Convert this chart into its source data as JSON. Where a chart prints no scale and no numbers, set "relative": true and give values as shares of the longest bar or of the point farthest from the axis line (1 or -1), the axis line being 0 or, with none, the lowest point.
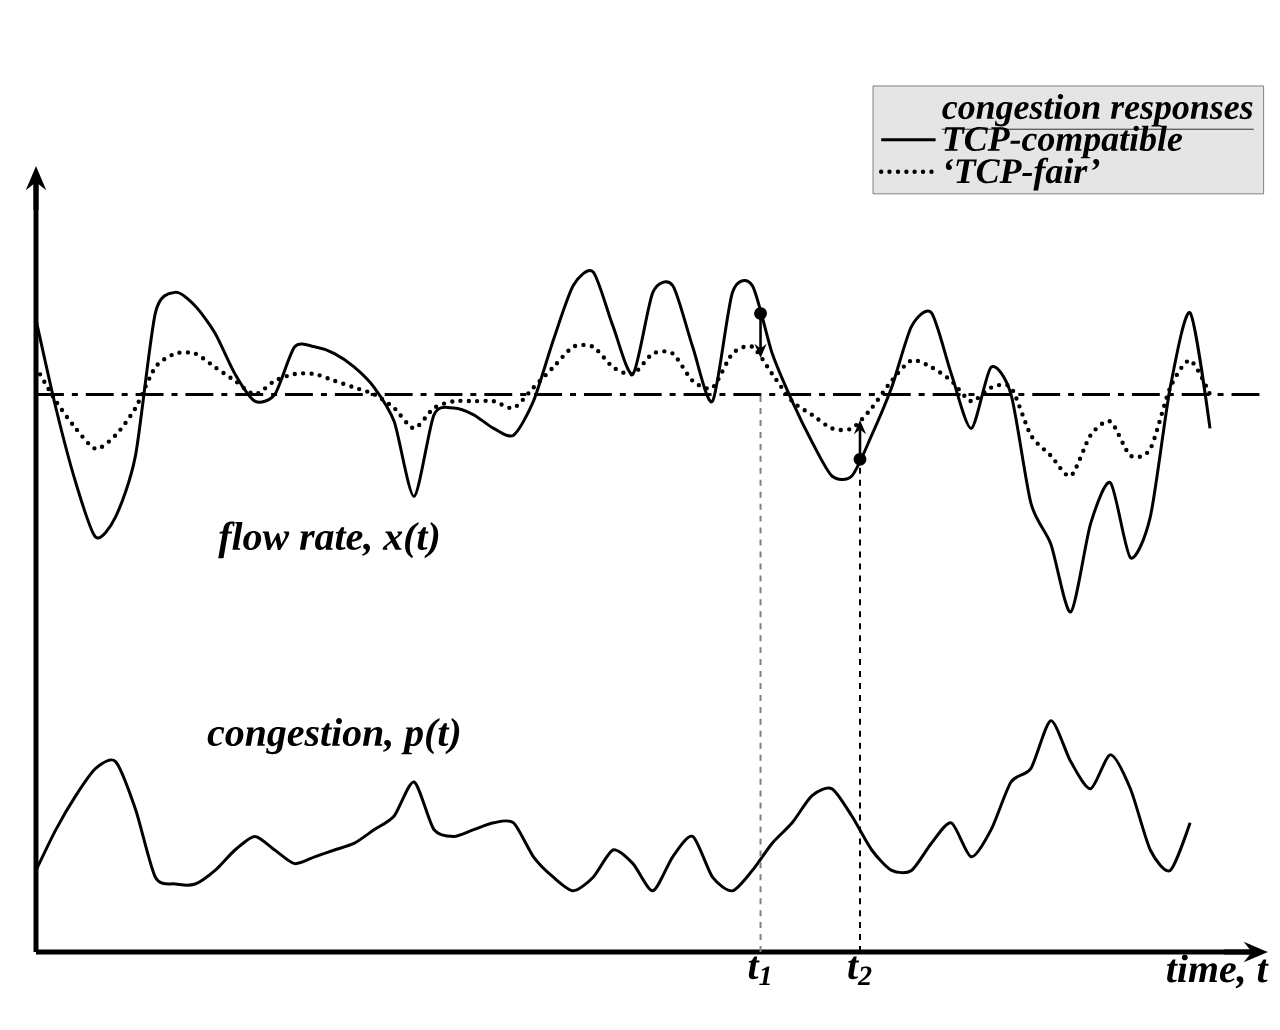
{
  "chart_data": {
    "type": "line",
    "relative": true,
    "xlabel": "time, t",
    "legend_title": "congestion responses",
    "legend": "top right",
    "categories": [
      null,
      null,
      null,
      null,
      null,
      null,
      null,
      null,
      null,
      null,
      null,
      null,
      null,
      null,
      null,
      null,
      null,
      null,
      null,
      null,
      null,
      null,
      null,
      null,
      null,
      null,
      null,
      null,
      null,
      null,
      null,
      null,
      null,
      null,
      null,
      null,
      null,
      null,
      null,
      null,
      null,
      null,
      null,
      null,
      null,
      null,
      null,
      null,
      null,
      null,
      null,
      null,
      null,
      null,
      null,
      null,
      null,
      null,
      null,
      null
    ],
    "series": [
      {
        "name": "TCP-compatible",
        "color": "#000000",
        "line_style": "solid",
        "values": [
          0.93,
          0.8,
          0.69,
          0.61,
          0.64,
          0.73,
          0.94,
          0.97,
          0.95,
          0.91,
          0.85,
          0.81,
          0.82,
          0.89,
          0.89,
          0.88,
          0.86,
          0.83,
          0.78,
          0.67,
          0.79,
          0.8,
          0.79,
          0.77,
          0.76,
          0.81,
          0.9,
          0.98,
          1.0,
          0.92,
          0.85,
          0.97,
          0.98,
          0.89,
          0.81,
          0.97,
          0.98,
          0.88,
          0.81,
          0.75,
          0.7,
          0.7,
          0.76,
          0.83,
          0.92,
          0.94,
          0.85,
          0.77,
          0.86,
          0.82,
          0.66,
          0.6,
          0.5,
          0.63,
          0.69,
          0.58,
          0.64,
          0.83,
          0.94,
          0.77
        ]
      },
      {
        "name": "‘TCP-fair’",
        "color": "#000000",
        "line_style": "dotted",
        "values": [
          0.86,
          0.81,
          0.77,
          0.74,
          0.76,
          0.8,
          0.86,
          0.88,
          0.88,
          0.86,
          0.84,
          0.82,
          0.84,
          0.85,
          0.85,
          0.84,
          0.83,
          0.82,
          0.8,
          0.77,
          0.8,
          0.81,
          0.81,
          0.81,
          0.8,
          0.83,
          0.86,
          0.89,
          0.89,
          0.86,
          0.85,
          0.88,
          0.88,
          0.84,
          0.83,
          0.88,
          0.89,
          0.85,
          0.81,
          0.79,
          0.77,
          0.77,
          0.8,
          0.84,
          0.87,
          0.86,
          0.84,
          0.81,
          0.83,
          0.83,
          0.76,
          0.73,
          0.7,
          0.76,
          0.78,
          0.73,
          0.74,
          0.83,
          0.87,
          0.82
        ]
      },
      {
        "color": "#000000",
        "line_style": "solid",
        "values": [
          0.12,
          0.18,
          0.23,
          0.27,
          0.28,
          0.21,
          0.11,
          0.1,
          0.1,
          0.12,
          0.15,
          0.17,
          0.15,
          0.13,
          0.14,
          0.15,
          0.16,
          0.18,
          0.2,
          0.25,
          0.18,
          0.17,
          0.18,
          0.19,
          0.19,
          0.14,
          0.11,
          0.09,
          0.11,
          0.15,
          0.13,
          0.09,
          0.14,
          0.17,
          0.11,
          0.09,
          0.12,
          0.16,
          0.19,
          0.23,
          0.24,
          0.2,
          0.15,
          0.12,
          0.12,
          0.16,
          0.19,
          0.14,
          0.18,
          0.25,
          0.27,
          0.34,
          0.28,
          0.24,
          0.29,
          0.24,
          0.15,
          0.12,
          0.19,
          null
        ]
      }
    ],
    "ref_lines": [
      {
        "axis": "y",
        "value": 0.82,
        "line_style": "dashdot",
        "color": "#000000"
      }
    ],
    "annotations": [
      "flow rate, x(t)",
      "congestion, p(t)",
      "t$_{1}$",
      "t$_{2}$"
    ]
  }
}
